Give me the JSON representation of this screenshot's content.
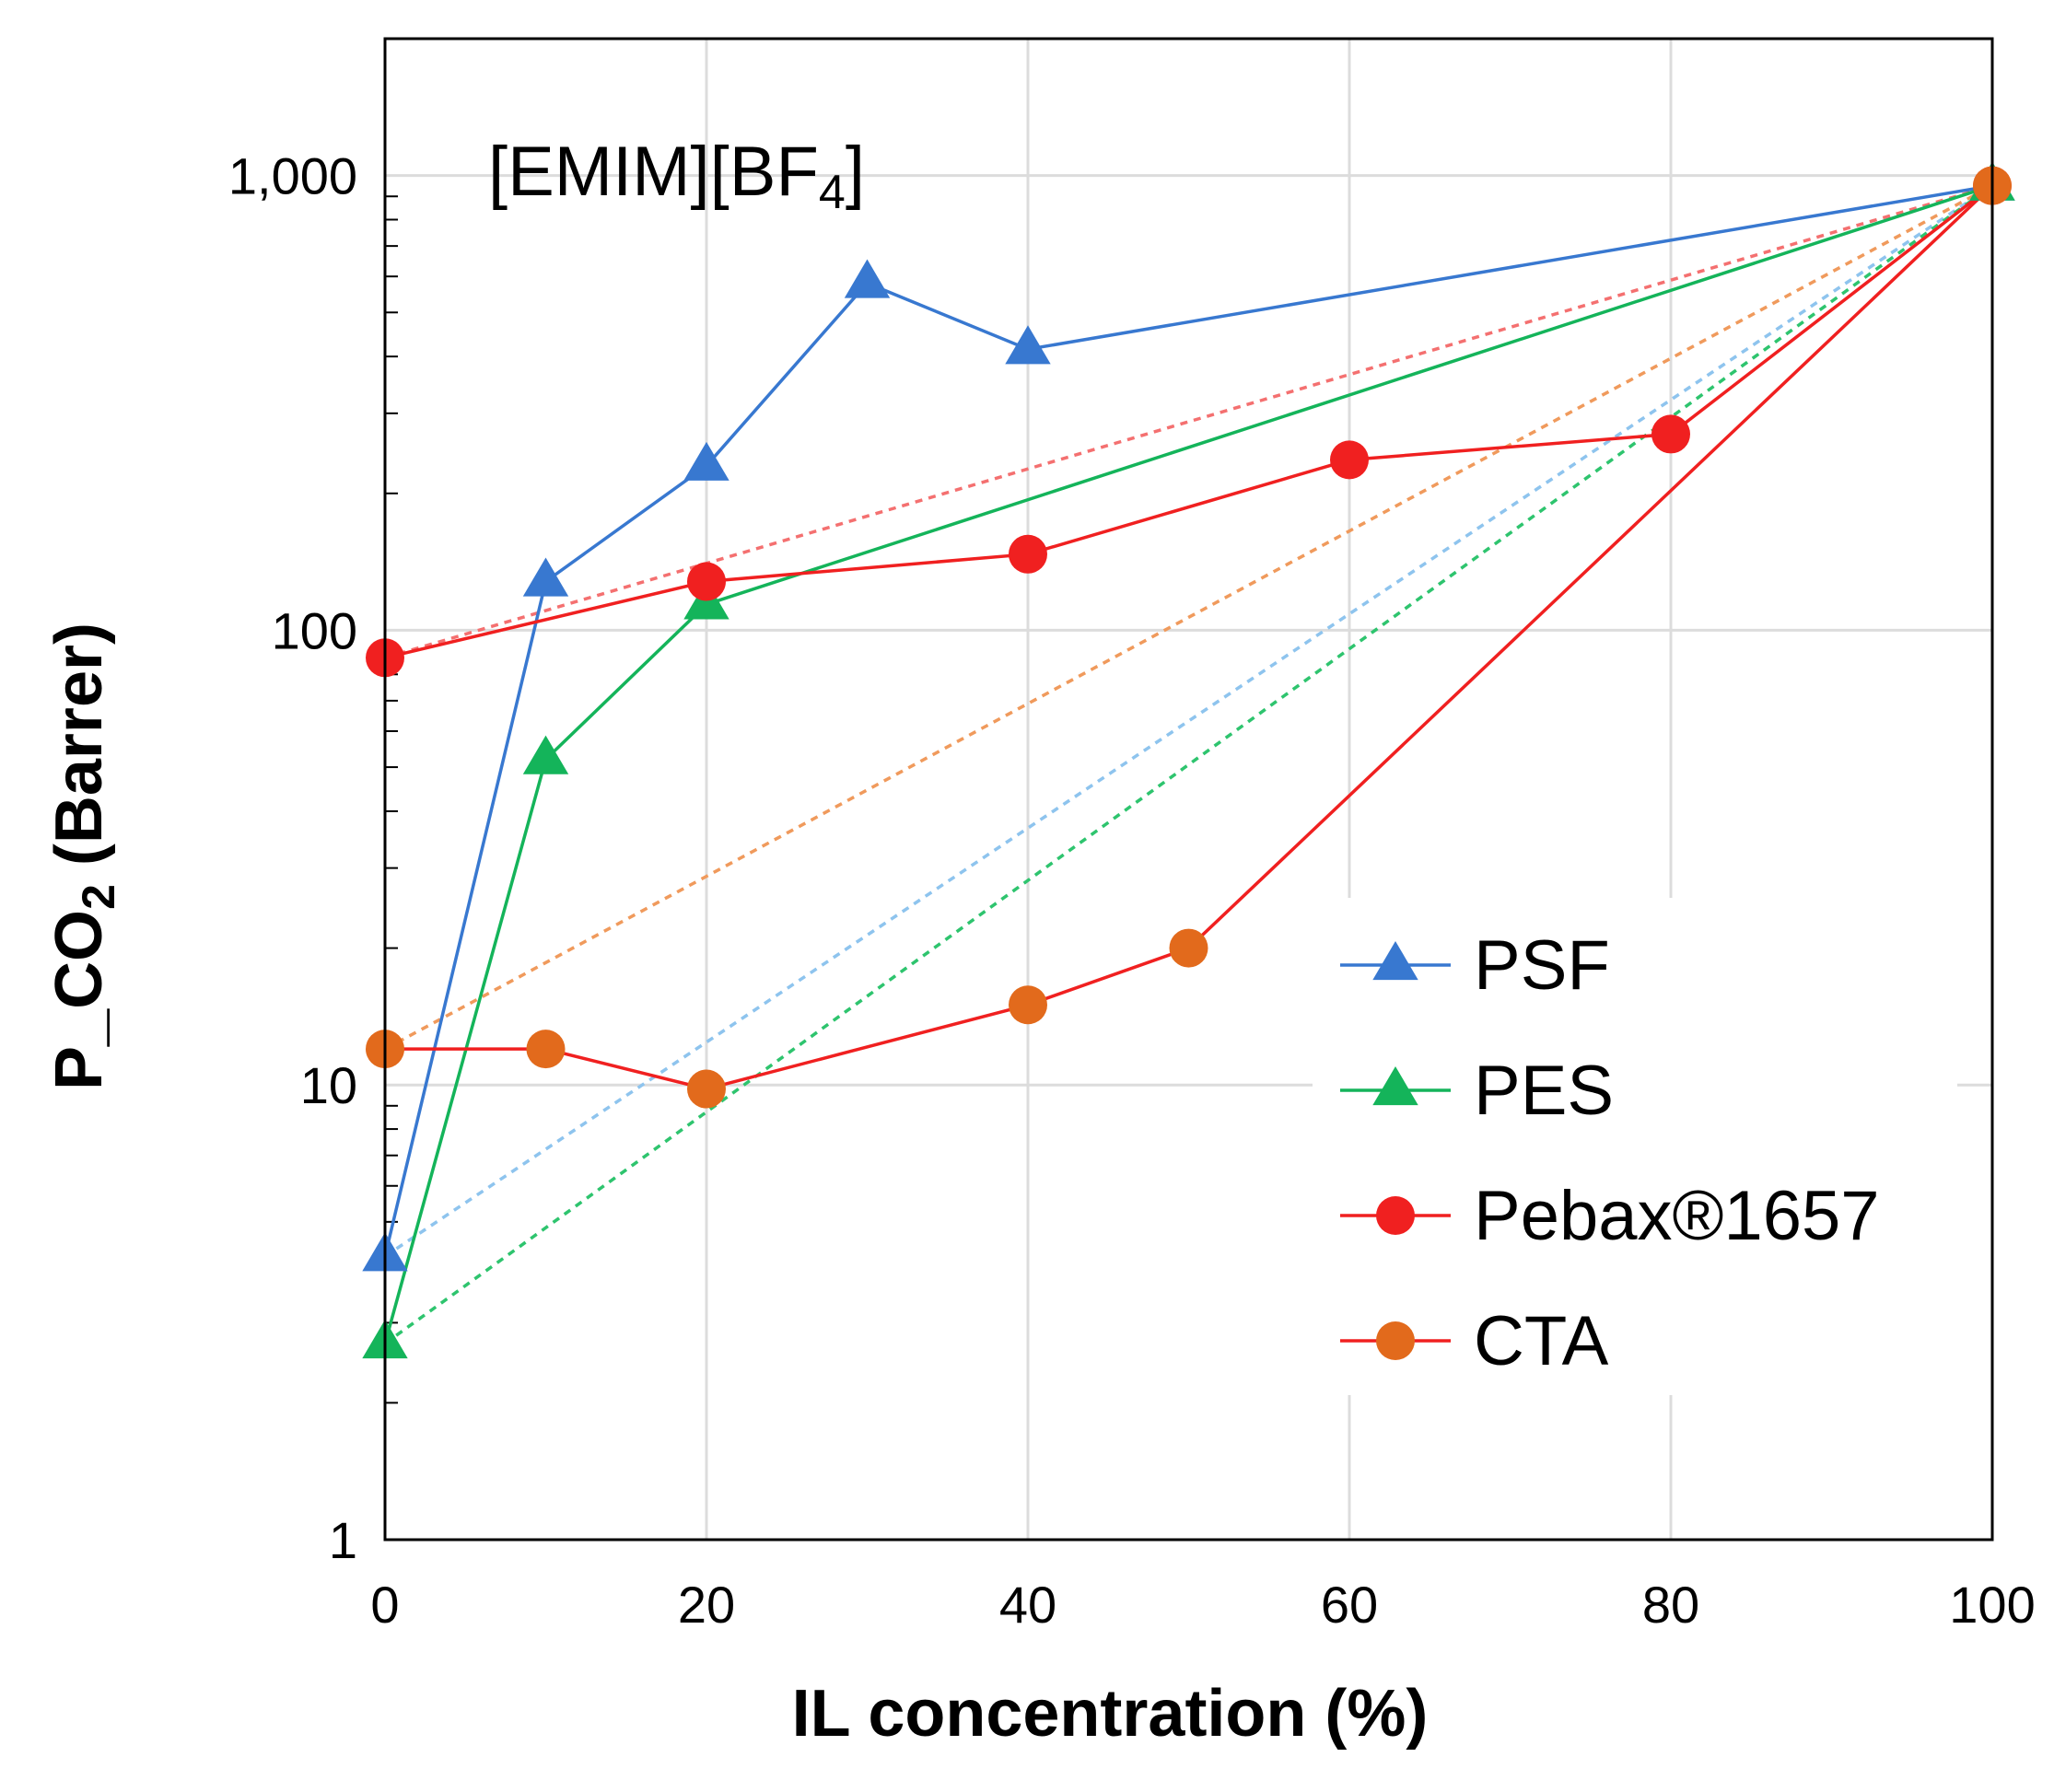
{
  "chart_data": {
    "type": "line",
    "title": "",
    "annotation": {
      "text": "[EMIM][BF",
      "subscript": "4",
      "suffix": "]"
    },
    "xlabel": "IL concentration (%)",
    "ylabel": {
      "main": "P_CO",
      "subscript": "2",
      "suffix": " (Barrer)"
    },
    "xlim": [
      0,
      100
    ],
    "ylim": [
      1,
      2000
    ],
    "yscale": "log",
    "grid": true,
    "legend_position": "bottom-right",
    "xticks": [
      "0",
      "20",
      "40",
      "60",
      "80",
      "100"
    ],
    "yticks": [
      "1",
      "10",
      "100",
      "1,000"
    ],
    "series": [
      {
        "name": "PSF",
        "marker": "triangle",
        "color": "#3878d0",
        "x": [
          0,
          10,
          20,
          30,
          40,
          100
        ],
        "y": [
          4.2,
          128,
          230,
          580,
          415,
          950
        ],
        "ideal": {
          "color": "#8ec4ee",
          "x": [
            0,
            100
          ],
          "y": [
            4.2,
            950
          ]
        }
      },
      {
        "name": "PES",
        "marker": "triangle",
        "color": "#14b45a",
        "x": [
          0,
          10,
          20,
          100
        ],
        "y": [
          2.7,
          52,
          114,
          950
        ],
        "ideal": {
          "color": "#2ec46e",
          "x": [
            0,
            100
          ],
          "y": [
            2.7,
            950
          ]
        }
      },
      {
        "name": "Pebax®1657",
        "marker": "circle",
        "color": "#f02020",
        "x": [
          0,
          20,
          40,
          60,
          80,
          100
        ],
        "y": [
          87,
          128,
          147,
          237,
          270,
          950
        ],
        "ideal": {
          "color": "#f47070",
          "x": [
            0,
            100
          ],
          "y": [
            87,
            950
          ]
        }
      },
      {
        "name": "CTA",
        "marker": "circle",
        "color": "#e26a1c",
        "line_color": "#f02020",
        "x": [
          0,
          10,
          20,
          40,
          50,
          100
        ],
        "y": [
          12,
          12,
          9.8,
          15,
          20,
          950
        ],
        "ideal": {
          "color": "#f09a5c",
          "x": [
            0,
            100
          ],
          "y": [
            12,
            950
          ]
        }
      }
    ]
  }
}
